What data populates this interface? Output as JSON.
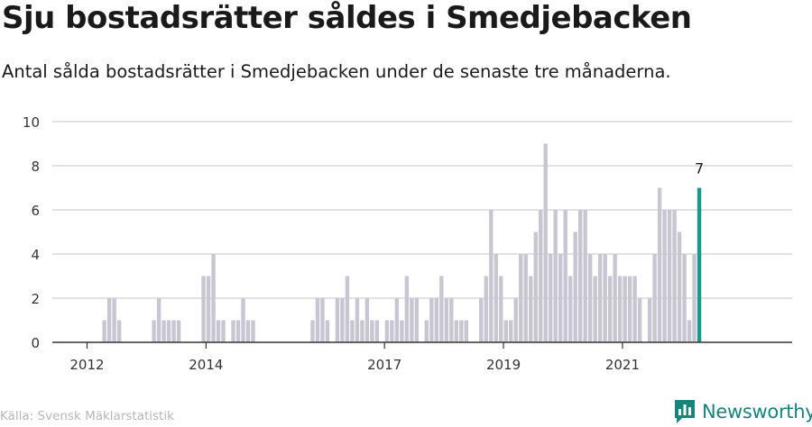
{
  "title": "Sju bostadsrätter såldes i Smedjebacken",
  "subtitle": "Antal sålda bostadsrätter i Smedjebacken under de senaste tre månaderna.",
  "source": "Källa: Svensk Mäklarstatistik",
  "brand": {
    "name": "Newsworthy",
    "icon": "newsworthy-logo-icon"
  },
  "colors": {
    "bar": "#c8c6d3",
    "highlight": "#1a9a8d",
    "grid": "#d9d9d9",
    "axis": "#333333",
    "brand": "#17857c"
  },
  "chart_data": {
    "type": "bar",
    "x_start": "2011-07",
    "x_interval": "month",
    "values": [
      0,
      0,
      0,
      0,
      0,
      0,
      0,
      0,
      0,
      1,
      2,
      2,
      1,
      0,
      0,
      0,
      0,
      0,
      0,
      1,
      2,
      1,
      1,
      1,
      1,
      0,
      0,
      0,
      0,
      3,
      3,
      4,
      1,
      1,
      0,
      1,
      1,
      2,
      1,
      1,
      0,
      0,
      0,
      0,
      0,
      0,
      0,
      0,
      0,
      0,
      0,
      1,
      2,
      2,
      1,
      0,
      2,
      2,
      3,
      1,
      2,
      1,
      2,
      1,
      1,
      0,
      1,
      1,
      2,
      1,
      3,
      2,
      2,
      0,
      1,
      2,
      2,
      3,
      2,
      2,
      1,
      1,
      1,
      0,
      0,
      2,
      3,
      6,
      4,
      3,
      1,
      1,
      2,
      4,
      4,
      3,
      5,
      6,
      9,
      4,
      6,
      4,
      6,
      3,
      5,
      6,
      6,
      4,
      3,
      4,
      4,
      3,
      4,
      3,
      3,
      3,
      3,
      2,
      0,
      2,
      4,
      7,
      6,
      6,
      6,
      5,
      4,
      1,
      4,
      7
    ],
    "highlight_last": true,
    "highlight_label": "7",
    "x_ticks": [
      {
        "label": "2012",
        "index": 6
      },
      {
        "label": "2014",
        "index": 30
      },
      {
        "label": "2017",
        "index": 66
      },
      {
        "label": "2019",
        "index": 90
      },
      {
        "label": "2021",
        "index": 114
      }
    ],
    "y_ticks": [
      "0",
      "2",
      "4",
      "6",
      "8",
      "10"
    ],
    "ylim": [
      0,
      10
    ],
    "grid": true,
    "legend": "none"
  }
}
